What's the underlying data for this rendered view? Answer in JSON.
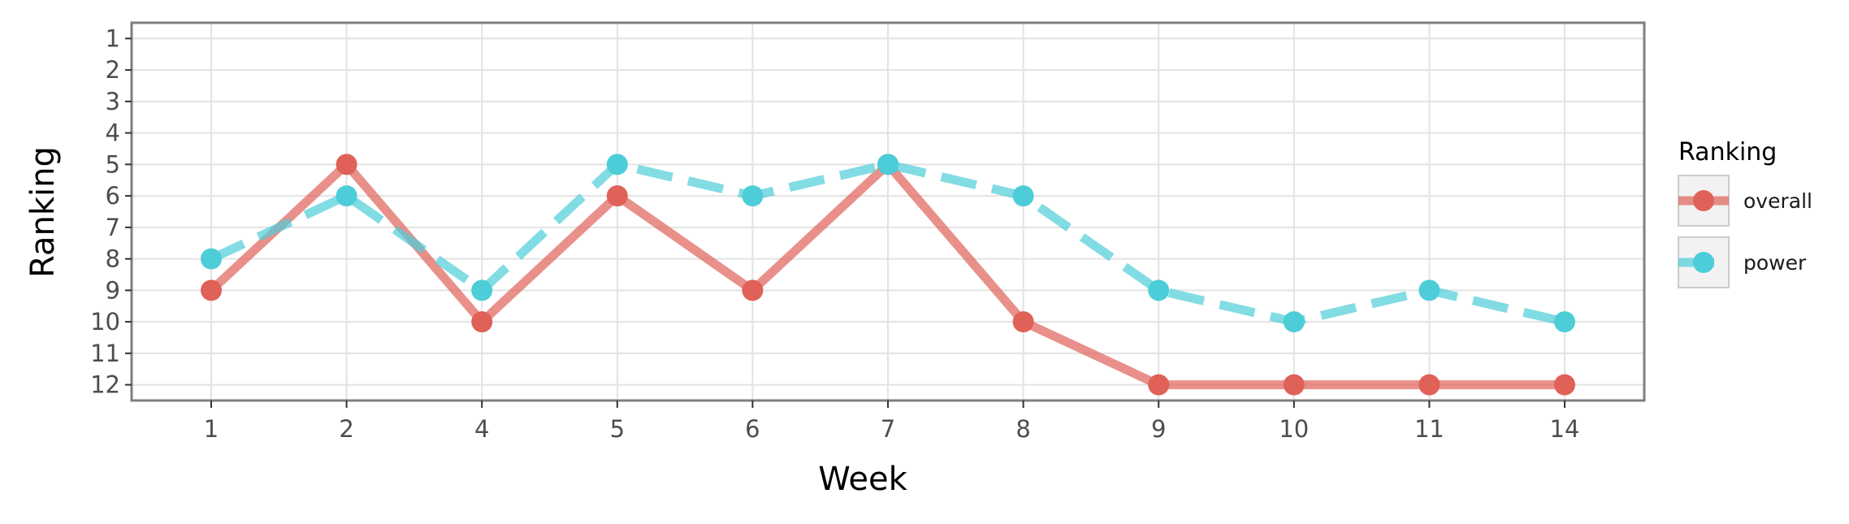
{
  "chart_data": {
    "type": "line",
    "title": "",
    "xlabel": "Week",
    "ylabel": "Ranking",
    "categories": [
      "1",
      "2",
      "4",
      "5",
      "6",
      "7",
      "8",
      "9",
      "10",
      "11",
      "14"
    ],
    "y_ticks": [
      "1",
      "2",
      "3",
      "4",
      "5",
      "6",
      "7",
      "8",
      "9",
      "10",
      "11",
      "12"
    ],
    "ylim": [
      12.5,
      0.5
    ],
    "y_reversed": true,
    "grid": true,
    "legend": {
      "title": "Ranking",
      "position": "right"
    },
    "series": [
      {
        "name": "overall",
        "values": [
          9,
          5,
          10,
          6,
          9,
          5,
          10,
          12,
          12,
          12,
          12
        ],
        "color": "#df6158",
        "line_style": "solid"
      },
      {
        "name": "power",
        "values": [
          8,
          6,
          9,
          5,
          6,
          5,
          6,
          9,
          10,
          9,
          10
        ],
        "color": "#4dcdd8",
        "line_style": "dashed"
      }
    ]
  }
}
